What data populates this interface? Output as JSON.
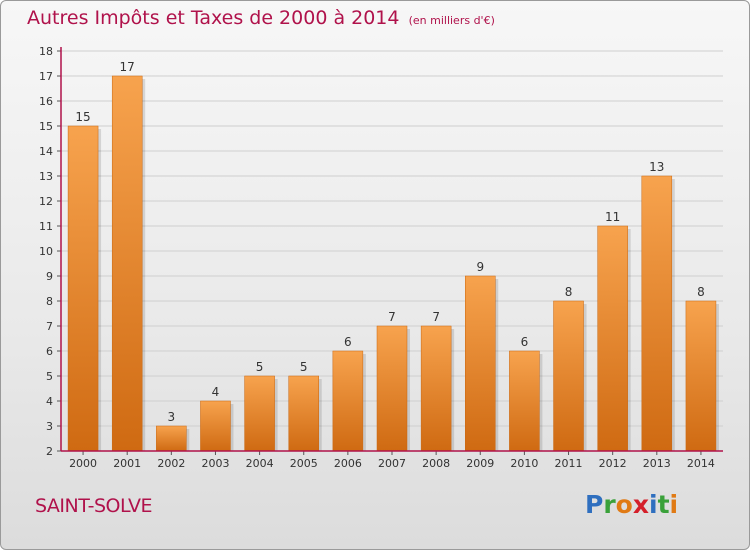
{
  "header": {
    "title": "Autres Impôts et Taxes de 2000 à 2014",
    "subtitle": "(en milliers d'€)"
  },
  "footer": {
    "city": "SAINT-SOLVE",
    "logo_letters": [
      "P",
      "r",
      "o",
      "x",
      "i",
      "t",
      "i"
    ],
    "logo_colors": [
      "#2f6fbf",
      "#3aa13a",
      "#e07a14",
      "#d41f2a",
      "#2f6fbf",
      "#3aa13a",
      "#e07a14"
    ]
  },
  "colors": {
    "bar_light": "#f7a34e",
    "bar_dark": "#cf6a12",
    "axis": "#b0124b",
    "title": "#b0124b",
    "grid": "#cfcfcf"
  },
  "chart_data": {
    "type": "bar",
    "title": "Autres Impôts et Taxes de 2000 à 2014",
    "subtitle": "(en milliers d'€)",
    "categories": [
      "2000",
      "2001",
      "2002",
      "2003",
      "2004",
      "2005",
      "2006",
      "2007",
      "2008",
      "2009",
      "2010",
      "2011",
      "2012",
      "2013",
      "2014"
    ],
    "values": [
      15,
      17,
      3,
      4,
      5,
      5,
      6,
      7,
      7,
      9,
      6,
      8,
      11,
      13,
      8
    ],
    "ylim": [
      2,
      18
    ],
    "yticks": [
      2,
      3,
      4,
      5,
      6,
      7,
      8,
      9,
      10,
      11,
      12,
      13,
      14,
      15,
      16,
      17,
      18
    ],
    "grid": true,
    "data_labels": true
  }
}
